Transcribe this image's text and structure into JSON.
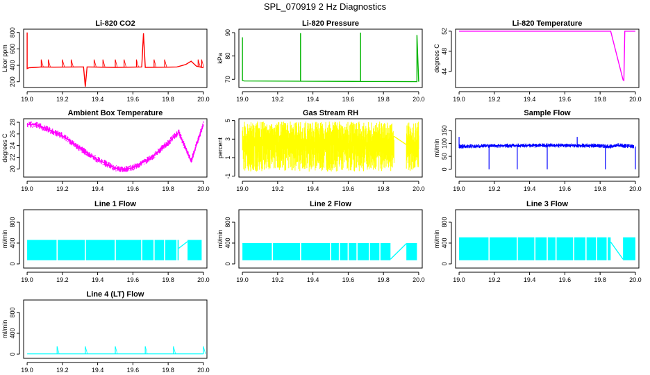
{
  "figure_title": "SPL_070919  2 Hz Diagnostics",
  "chart_data": [
    {
      "type": "line",
      "title": "Li-820 CO2",
      "ylabel": "Licor ppm",
      "color": "#ff0000",
      "xlim": [
        18.98,
        20.02
      ],
      "ylim": [
        130,
        840
      ],
      "xticks": [
        19.0,
        19.2,
        19.4,
        19.6,
        19.8,
        20.0
      ],
      "xtick_labels": [
        "19.0",
        "19.2",
        "19.4",
        "19.6",
        "19.8",
        "20.0"
      ],
      "yticks": [
        200,
        400,
        600,
        800
      ],
      "ytick_labels": [
        "200",
        "400",
        "600",
        "800"
      ],
      "mode": "line",
      "x": [
        19.0,
        19.0,
        19.01,
        19.05,
        19.08,
        19.15,
        19.3,
        19.32,
        19.33,
        19.34,
        19.5,
        19.65,
        19.66,
        19.67,
        19.8,
        19.85,
        19.9,
        19.93,
        19.96,
        19.98,
        20.0
      ],
      "y": [
        800,
        360,
        370,
        375,
        380,
        378,
        380,
        380,
        140,
        380,
        375,
        380,
        790,
        375,
        378,
        380,
        410,
        450,
        390,
        380,
        370
      ],
      "spikes": [
        19.08,
        19.12,
        19.2,
        19.25,
        19.38,
        19.43,
        19.5,
        19.55,
        19.62,
        19.72,
        19.78,
        19.97,
        19.99
      ],
      "spike_value": 470
    },
    {
      "type": "line",
      "title": "Li-820 Pressure",
      "ylabel": "kPa",
      "color": "#00b400",
      "xlim": [
        18.98,
        20.02
      ],
      "ylim": [
        66.5,
        91.5
      ],
      "xticks": [
        19.0,
        19.2,
        19.4,
        19.6,
        19.8,
        20.0
      ],
      "xtick_labels": [
        "19.0",
        "19.2",
        "19.4",
        "19.6",
        "19.8",
        "20.0"
      ],
      "yticks": [
        70,
        80,
        90
      ],
      "ytick_labels": [
        "70",
        "80",
        "90"
      ],
      "mode": "line",
      "x": [
        19.0,
        19.0,
        19.0,
        19.01,
        19.33,
        19.33,
        19.33,
        19.67,
        19.67,
        19.67,
        19.99,
        19.99,
        20.0
      ],
      "y": [
        83,
        88,
        69.5,
        69.3,
        69.2,
        89.8,
        69.2,
        69.1,
        90,
        69.1,
        69.0,
        89,
        69.0
      ]
    },
    {
      "type": "line",
      "title": "Li-820 Temperature",
      "ylabel": "degrees C",
      "color": "#ff00ff",
      "xlim": [
        18.98,
        20.02
      ],
      "ylim": [
        40.8,
        52.4
      ],
      "xticks": [
        19.0,
        19.2,
        19.4,
        19.6,
        19.8,
        20.0
      ],
      "xtick_labels": [
        "19.0",
        "19.2",
        "19.4",
        "19.6",
        "19.8",
        "20.0"
      ],
      "yticks": [
        44,
        48,
        52
      ],
      "ytick_labels": [
        "44",
        "48",
        "52"
      ],
      "mode": "line",
      "x": [
        19.0,
        19.5,
        19.86,
        19.93,
        19.935,
        19.94,
        20.0
      ],
      "y": [
        52.0,
        52.0,
        52.0,
        42.3,
        42.2,
        52.0,
        52.0
      ]
    },
    {
      "type": "band",
      "title": "Ambient Box Temperature",
      "ylabel": "degrees C",
      "color": "#ff00ff",
      "xlim": [
        18.98,
        20.02
      ],
      "ylim": [
        18.6,
        28.6
      ],
      "xticks": [
        19.0,
        19.2,
        19.4,
        19.6,
        19.8,
        20.0
      ],
      "xtick_labels": [
        "19.0",
        "19.2",
        "19.4",
        "19.6",
        "19.8",
        "20.0"
      ],
      "yticks": [
        20,
        22,
        24,
        26,
        28
      ],
      "ytick_labels": [
        "20",
        "22",
        "24",
        "26",
        "28"
      ],
      "mode": "band",
      "noise": 0.55,
      "x": [
        19.0,
        19.05,
        19.1,
        19.2,
        19.3,
        19.4,
        19.5,
        19.55,
        19.6,
        19.7,
        19.8,
        19.86,
        19.93,
        19.97,
        20.0
      ],
      "y": [
        27.6,
        27.6,
        27.0,
        25.7,
        23.5,
        21.6,
        20.1,
        19.9,
        20.2,
        21.8,
        24.5,
        26.3,
        21.3,
        25.0,
        27.6
      ]
    },
    {
      "type": "band",
      "title": "Gas Stream RH",
      "ylabel": "percent",
      "color": "#ffff00",
      "xlim": [
        18.98,
        20.02
      ],
      "ylim": [
        -1.1,
        5.2
      ],
      "xticks": [
        19.0,
        19.2,
        19.4,
        19.6,
        19.8,
        20.0
      ],
      "xtick_labels": [
        "19.0",
        "19.2",
        "19.4",
        "19.6",
        "19.8",
        "20.0"
      ],
      "yticks": [
        -1,
        1,
        3,
        5
      ],
      "ytick_labels": [
        "-1",
        "1",
        "3",
        "5"
      ],
      "mode": "noise",
      "noise_lo": -0.5,
      "noise_hi": 4.9,
      "segments": [
        [
          19.0,
          19.86
        ],
        [
          19.93,
          20.0
        ]
      ],
      "bridge_x": [
        19.86,
        19.93
      ],
      "bridge_y": [
        3.3,
        2.4
      ]
    },
    {
      "type": "line",
      "title": "Sample Flow",
      "ylabel": "ml/min",
      "color": "#0000ff",
      "xlim": [
        18.98,
        20.02
      ],
      "ylim": [
        -30,
        195
      ],
      "xticks": [
        19.0,
        19.2,
        19.4,
        19.6,
        19.8,
        20.0
      ],
      "xtick_labels": [
        "19.0",
        "19.2",
        "19.4",
        "19.6",
        "19.8",
        "20.0"
      ],
      "yticks": [
        0,
        50,
        100,
        150
      ],
      "ytick_labels": [
        "0",
        "50",
        "100",
        "150"
      ],
      "mode": "band",
      "noise": 8,
      "x": [
        19.0,
        19.2,
        19.4,
        19.6,
        19.8,
        19.86,
        19.9,
        19.95,
        19.99
      ],
      "y": [
        88,
        91,
        92,
        92,
        91,
        88,
        93,
        90,
        88
      ],
      "drops": [
        19.17,
        19.33,
        19.5,
        19.83,
        20.0
      ],
      "drop_value": 0,
      "peaks": [
        19.0,
        19.67
      ],
      "peak_value": 125
    },
    {
      "type": "bar",
      "title": "Line 1 Flow",
      "ylabel": "ml/min",
      "color": "#00ffff",
      "xlim": [
        18.98,
        20.02
      ],
      "ylim": [
        -80,
        1040
      ],
      "xticks": [
        19.0,
        19.2,
        19.4,
        19.6,
        19.8,
        20.0
      ],
      "xtick_labels": [
        "19.0",
        "19.2",
        "19.4",
        "19.6",
        "19.8",
        "20.0"
      ],
      "yticks": [
        0,
        400,
        800
      ],
      "ytick_labels": [
        "0",
        "400",
        "800"
      ],
      "mode": "block",
      "segments": [
        [
          19.0,
          19.86
        ],
        [
          19.91,
          19.99
        ]
      ],
      "low": 70,
      "high": 460,
      "gaps": [
        19.17,
        19.33,
        19.5,
        19.65,
        19.72,
        19.78,
        19.85
      ],
      "bridge_x": [
        19.86,
        19.91
      ],
      "bridge_y": [
        300,
        430
      ]
    },
    {
      "type": "bar",
      "title": "Line 2 Flow",
      "ylabel": "ml/min",
      "color": "#00ffff",
      "xlim": [
        18.98,
        20.02
      ],
      "ylim": [
        -80,
        1040
      ],
      "xticks": [
        19.0,
        19.2,
        19.4,
        19.6,
        19.8,
        20.0
      ],
      "xtick_labels": [
        "19.0",
        "19.2",
        "19.4",
        "19.6",
        "19.8",
        "20.0"
      ],
      "yticks": [
        0,
        400,
        800
      ],
      "ytick_labels": [
        "0",
        "400",
        "800"
      ],
      "mode": "block",
      "segments": [
        [
          19.0,
          19.84
        ],
        [
          19.93,
          19.99
        ]
      ],
      "low": 70,
      "high": 400,
      "gaps": [
        19.17,
        19.33,
        19.5,
        19.55,
        19.6,
        19.65,
        19.72,
        19.78
      ],
      "bridge_x": [
        19.84,
        19.93
      ],
      "bridge_y": [
        90,
        390
      ]
    },
    {
      "type": "bar",
      "title": "Line 3 Flow",
      "ylabel": "ml/min",
      "color": "#00ffff",
      "xlim": [
        18.98,
        20.02
      ],
      "ylim": [
        -80,
        1040
      ],
      "xticks": [
        19.0,
        19.2,
        19.4,
        19.6,
        19.8,
        20.0
      ],
      "xtick_labels": [
        "19.0",
        "19.2",
        "19.4",
        "19.6",
        "19.8",
        "20.0"
      ],
      "yticks": [
        0,
        400,
        800
      ],
      "ytick_labels": [
        "0",
        "400",
        "800"
      ],
      "mode": "block",
      "segments": [
        [
          19.0,
          19.86
        ],
        [
          19.93,
          20.0
        ]
      ],
      "low": 70,
      "high": 510,
      "gaps": [
        19.17,
        19.33,
        19.43,
        19.5,
        19.55,
        19.65,
        19.72,
        19.78,
        19.84
      ],
      "bridge_x": [
        19.86,
        19.93
      ],
      "bridge_y": [
        420,
        90
      ]
    },
    {
      "type": "line",
      "title": "Line 4 (LT) Flow",
      "ylabel": "ml/min",
      "color": "#00ffff",
      "xlim": [
        18.98,
        20.02
      ],
      "ylim": [
        -80,
        1040
      ],
      "xticks": [
        19.0,
        19.2,
        19.4,
        19.6,
        19.8,
        20.0
      ],
      "xtick_labels": [
        "19.0",
        "19.2",
        "19.4",
        "19.6",
        "19.8",
        "20.0"
      ],
      "yticks": [
        0,
        400,
        800
      ],
      "ytick_labels": [
        "0",
        "400",
        "800"
      ],
      "mode": "line",
      "x": [
        19.0,
        20.0
      ],
      "y": [
        5,
        5
      ],
      "spikes": [
        19.17,
        19.33,
        19.5,
        19.67,
        19.83,
        20.0
      ],
      "spike_value": 150
    }
  ]
}
